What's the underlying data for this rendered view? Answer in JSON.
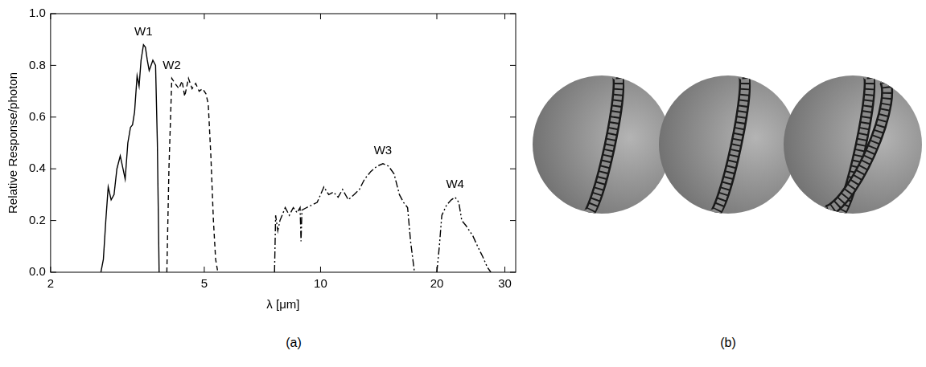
{
  "chart_data": {
    "type": "line",
    "x_label": "λ [μm]",
    "y_label": "Relative Response/photon",
    "log": "x",
    "grid": false,
    "xlim": [
      2,
      32
    ],
    "xticks": [
      2,
      5,
      10,
      20,
      30
    ],
    "ylim": [
      0,
      1
    ],
    "yticks": [
      {
        "value": 0,
        "label": "0.0"
      },
      0.2,
      0.4,
      0.6,
      0.8,
      {
        "value": 1,
        "label": "1.0"
      }
    ],
    "series": [
      {
        "name": "W1",
        "color": "#000000",
        "line_style": "solid",
        "x": [
          2.7,
          2.74,
          2.78,
          2.82,
          2.87,
          2.92,
          2.97,
          3.03,
          3.08,
          3.12,
          3.17,
          3.22,
          3.26,
          3.3,
          3.35,
          3.39,
          3.43,
          3.48,
          3.52,
          3.56,
          3.6,
          3.64,
          3.68,
          3.74,
          3.78,
          3.82
        ],
        "values": [
          0,
          0.05,
          0.2,
          0.33,
          0.28,
          0.3,
          0.4,
          0.45,
          0.4,
          0.36,
          0.5,
          0.56,
          0.57,
          0.62,
          0.76,
          0.72,
          0.82,
          0.88,
          0.87,
          0.82,
          0.78,
          0.8,
          0.82,
          0.8,
          0.5,
          0
        ]
      },
      {
        "name": "W2",
        "color": "#000000",
        "line_style": "dashed",
        "x": [
          4.0,
          4.05,
          4.12,
          4.2,
          4.3,
          4.38,
          4.45,
          4.55,
          4.65,
          4.75,
          4.85,
          4.95,
          5.05,
          5.12,
          5.2,
          5.28,
          5.35,
          5.42
        ],
        "values": [
          0,
          0.4,
          0.75,
          0.73,
          0.71,
          0.74,
          0.68,
          0.75,
          0.71,
          0.73,
          0.7,
          0.71,
          0.69,
          0.65,
          0.45,
          0.2,
          0.05,
          0
        ]
      },
      {
        "name": "W3",
        "color": "#000000",
        "line_style": "dashdot",
        "x": [
          7.6,
          7.65,
          7.75,
          7.85,
          7.95,
          8.1,
          8.3,
          8.5,
          8.7,
          8.85,
          8.9,
          8.95,
          9.2,
          9.5,
          9.8,
          10.2,
          10.5,
          10.8,
          11.1,
          11.4,
          11.8,
          12.2,
          12.6,
          13.0,
          13.5,
          14.0,
          14.5,
          15.0,
          15.5,
          16.0,
          16.4,
          16.8,
          17.1,
          17.5
        ],
        "values": [
          0,
          0.22,
          0.16,
          0.2,
          0.22,
          0.25,
          0.22,
          0.25,
          0.23,
          0.25,
          0.12,
          0.24,
          0.25,
          0.26,
          0.27,
          0.33,
          0.3,
          0.31,
          0.29,
          0.32,
          0.28,
          0.3,
          0.32,
          0.36,
          0.39,
          0.41,
          0.42,
          0.41,
          0.38,
          0.3,
          0.27,
          0.25,
          0.12,
          0
        ]
      },
      {
        "name": "W4",
        "color": "#000000",
        "line_style": "dashdotdot",
        "x": [
          20.0,
          20.3,
          20.6,
          21.2,
          21.8,
          22.3,
          22.8,
          23.2,
          23.8,
          24.3,
          24.8,
          25.5,
          26.3,
          27.0,
          27.6
        ],
        "values": [
          0,
          0.1,
          0.22,
          0.26,
          0.28,
          0.29,
          0.27,
          0.2,
          0.18,
          0.16,
          0.14,
          0.1,
          0.06,
          0.02,
          0
        ]
      }
    ]
  },
  "panels": [
    {
      "label": "(a)"
    },
    {
      "label": "(b)"
    }
  ]
}
